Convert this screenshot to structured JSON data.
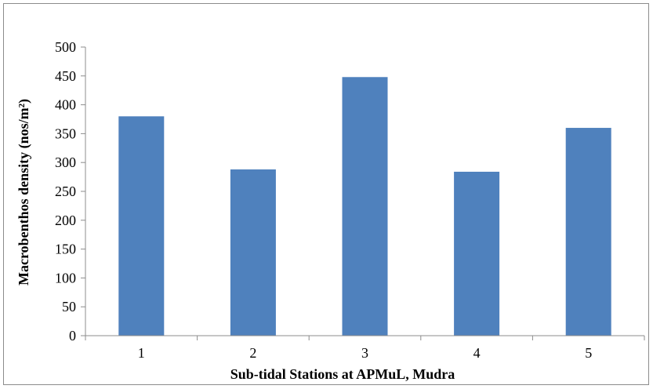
{
  "chart_data": {
    "type": "bar",
    "categories": [
      "1",
      "2",
      "3",
      "4",
      "5"
    ],
    "values": [
      380,
      288,
      448,
      284,
      360
    ],
    "xlabel": "Sub-tidal Stations at APMuL, Mudra",
    "ylabel": "Macrobenthos density (nos/m²)",
    "ylim": [
      0,
      500
    ],
    "yticks": [
      "0",
      "50",
      "100",
      "150",
      "200",
      "250",
      "300",
      "350",
      "400",
      "450",
      "500"
    ],
    "grid": false,
    "legend": "none",
    "bar_color": "#4f81bd"
  }
}
